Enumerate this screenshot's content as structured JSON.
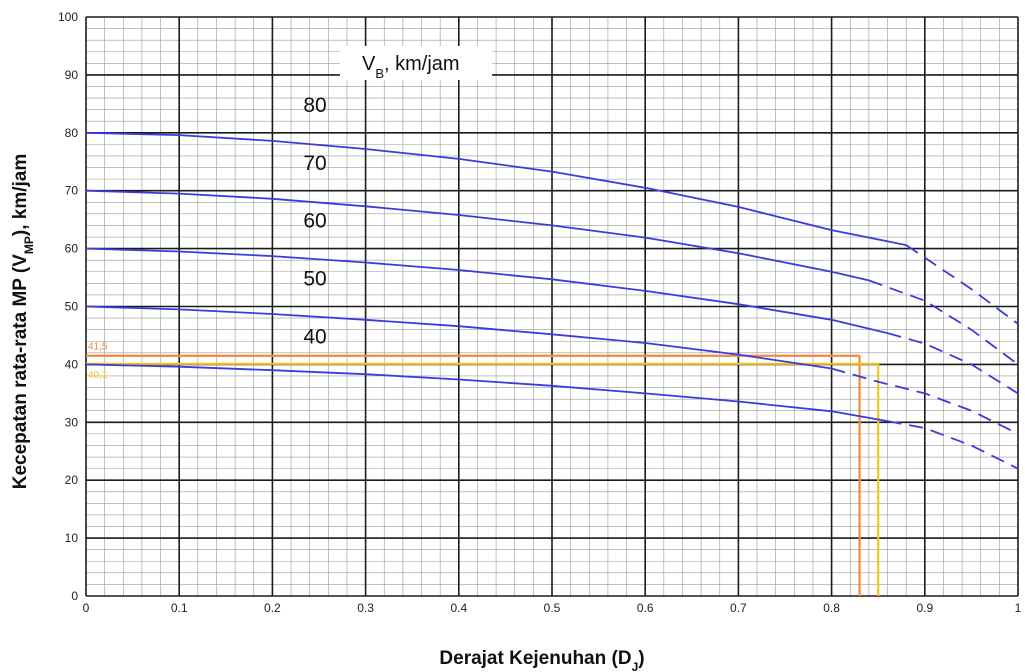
{
  "chart_data": {
    "type": "line",
    "title": "",
    "xlabel": {
      "text": "Derajat Kejenuhan (D",
      "sub": "J",
      "tail": ")"
    },
    "ylabel": {
      "text": "Kecepatan rata-rata MP (V",
      "sub": "MP",
      "tail": "), km/jam"
    },
    "legend_title": {
      "text": "V",
      "sub": "B",
      "tail": ", km/jam"
    },
    "xlim": [
      0,
      1
    ],
    "ylim": [
      0,
      100
    ],
    "x_ticks": [
      "0",
      "0.1",
      "0.2",
      "0.3",
      "0.4",
      "0.5",
      "0.6",
      "0.7",
      "0.8",
      "0.9",
      "1"
    ],
    "y_ticks": [
      "0",
      "10",
      "20",
      "30",
      "40",
      "50",
      "60",
      "70",
      "80",
      "90",
      "100"
    ],
    "grid": {
      "major": true,
      "minor": true
    },
    "curve_color": "#3b3bdf",
    "series": [
      {
        "name": "80",
        "solid_until": 0.88,
        "points": [
          [
            0,
            80
          ],
          [
            0.1,
            79.6
          ],
          [
            0.2,
            78.6
          ],
          [
            0.3,
            77.2
          ],
          [
            0.4,
            75.5
          ],
          [
            0.5,
            73.3
          ],
          [
            0.6,
            70.5
          ],
          [
            0.7,
            67.2
          ],
          [
            0.8,
            63.2
          ],
          [
            0.88,
            60.6
          ],
          [
            0.95,
            53
          ],
          [
            1.0,
            47
          ]
        ]
      },
      {
        "name": "70",
        "solid_until": 0.84,
        "points": [
          [
            0,
            70
          ],
          [
            0.1,
            69.5
          ],
          [
            0.2,
            68.6
          ],
          [
            0.3,
            67.3
          ],
          [
            0.4,
            65.8
          ],
          [
            0.5,
            64
          ],
          [
            0.6,
            61.9
          ],
          [
            0.7,
            59.2
          ],
          [
            0.8,
            56
          ],
          [
            0.84,
            54.5
          ],
          [
            0.9,
            51
          ],
          [
            0.95,
            46
          ],
          [
            1.0,
            40
          ]
        ]
      },
      {
        "name": "60",
        "solid_until": 0.86,
        "points": [
          [
            0,
            60
          ],
          [
            0.1,
            59.5
          ],
          [
            0.2,
            58.7
          ],
          [
            0.3,
            57.6
          ],
          [
            0.4,
            56.3
          ],
          [
            0.5,
            54.7
          ],
          [
            0.6,
            52.7
          ],
          [
            0.7,
            50.4
          ],
          [
            0.8,
            47.7
          ],
          [
            0.86,
            45.4
          ],
          [
            0.9,
            43.6
          ],
          [
            0.95,
            40
          ],
          [
            1.0,
            35
          ]
        ]
      },
      {
        "name": "50",
        "solid_until": 0.8,
        "points": [
          [
            0,
            50
          ],
          [
            0.1,
            49.5
          ],
          [
            0.2,
            48.7
          ],
          [
            0.3,
            47.7
          ],
          [
            0.4,
            46.6
          ],
          [
            0.5,
            45.2
          ],
          [
            0.6,
            43.7
          ],
          [
            0.7,
            41.7
          ],
          [
            0.8,
            39.3
          ],
          [
            0.85,
            37
          ],
          [
            0.9,
            35
          ],
          [
            0.95,
            32
          ],
          [
            1.0,
            28
          ]
        ]
      },
      {
        "name": "40",
        "solid_until": 0.86,
        "points": [
          [
            0,
            40
          ],
          [
            0.1,
            39.6
          ],
          [
            0.2,
            39
          ],
          [
            0.3,
            38.3
          ],
          [
            0.4,
            37.4
          ],
          [
            0.5,
            36.3
          ],
          [
            0.6,
            35
          ],
          [
            0.7,
            33.6
          ],
          [
            0.8,
            31.9
          ],
          [
            0.86,
            30.2
          ],
          [
            0.9,
            29
          ],
          [
            0.95,
            26
          ],
          [
            1.0,
            22
          ]
        ]
      }
    ],
    "reference_lines": [
      {
        "label": "41,5",
        "y": 41.5,
        "x": 0.83,
        "color": "#f08a3c"
      },
      {
        "label": "40,1",
        "y": 40.1,
        "x": 0.85,
        "color": "#f5c320"
      }
    ]
  }
}
